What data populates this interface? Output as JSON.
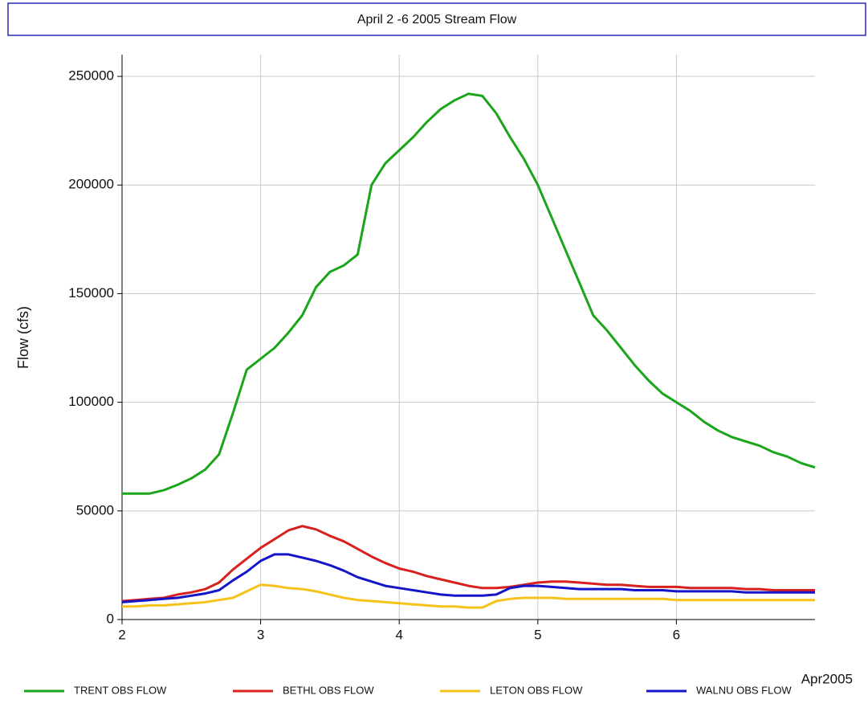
{
  "chart_data": {
    "type": "line",
    "title": "April 2 -6 2005 Stream Flow",
    "ylabel": "Flow (cfs)",
    "xlabel": "Apr2005",
    "x": [
      2,
      2.1,
      2.2,
      2.3,
      2.4,
      2.5,
      2.6,
      2.7,
      2.8,
      2.9,
      3,
      3.1,
      3.2,
      3.3,
      3.4,
      3.5,
      3.6,
      3.7,
      3.8,
      3.9,
      4,
      4.1,
      4.2,
      4.3,
      4.4,
      4.5,
      4.6,
      4.7,
      4.8,
      4.9,
      5,
      5.1,
      5.2,
      5.3,
      5.4,
      5.5,
      5.6,
      5.7,
      5.8,
      5.9,
      6,
      6.1,
      6.2,
      6.3,
      6.4,
      6.5,
      6.6,
      6.7,
      6.8,
      6.9,
      7
    ],
    "xlim": [
      2,
      7
    ],
    "xticks": [
      2,
      3,
      4,
      5,
      6
    ],
    "ylim": [
      0,
      260000
    ],
    "yticks": [
      0,
      50000,
      100000,
      150000,
      200000,
      250000
    ],
    "grid": true,
    "legend": "bottom",
    "series": [
      {
        "name": "TRENT OBS FLOW",
        "color": "#1aa51a",
        "values": [
          58000,
          58000,
          58000,
          59500,
          62000,
          65000,
          69000,
          76000,
          95000,
          115000,
          120000,
          125000,
          132000,
          140000,
          153000,
          160000,
          163000,
          168000,
          200000,
          210000,
          216000,
          222000,
          229000,
          235000,
          239000,
          242000,
          241000,
          233000,
          222000,
          212000,
          200000,
          185000,
          170000,
          155000,
          140000,
          133000,
          125000,
          117000,
          110000,
          104000,
          100000,
          96000,
          91000,
          87000,
          84000,
          82000,
          80000,
          77000,
          75000,
          72000,
          70000
        ]
      },
      {
        "name": "BETHL OBS FLOW",
        "color": "#d8201e",
        "values": [
          8500,
          9000,
          9500,
          10000,
          11500,
          12500,
          14000,
          17000,
          23000,
          28000,
          33000,
          37000,
          41000,
          43000,
          41500,
          38500,
          36000,
          32500,
          29000,
          26000,
          23500,
          22000,
          20000,
          18500,
          17000,
          15500,
          14500,
          14500,
          15000,
          16000,
          17000,
          17500,
          17500,
          17000,
          16500,
          16000,
          16000,
          15500,
          15000,
          15000,
          15000,
          14500,
          14500,
          14500,
          14500,
          14000,
          14000,
          13500,
          13500,
          13500,
          13500
        ]
      },
      {
        "name": "LETON OBS FLOW",
        "color": "#f5c21b",
        "values": [
          6000,
          6000,
          6500,
          6500,
          7000,
          7500,
          8000,
          9000,
          10000,
          13000,
          16000,
          15500,
          14500,
          14000,
          13000,
          11500,
          10000,
          9000,
          8500,
          8000,
          7500,
          7000,
          6500,
          6000,
          6000,
          5500,
          5500,
          8500,
          9500,
          10000,
          10000,
          10000,
          9500,
          9500,
          9500,
          9500,
          9500,
          9500,
          9500,
          9500,
          9000,
          9000,
          9000,
          9000,
          9000,
          9000,
          9000,
          9000,
          9000,
          9000,
          9000
        ]
      },
      {
        "name": "WALNU OBS FLOW",
        "color": "#1414c8",
        "values": [
          8000,
          8500,
          9000,
          9500,
          10000,
          11000,
          12000,
          13500,
          18000,
          22000,
          27000,
          30000,
          30000,
          28500,
          27000,
          25000,
          22500,
          19500,
          17500,
          15500,
          14500,
          13500,
          12500,
          11500,
          11000,
          11000,
          11000,
          11500,
          14500,
          15500,
          15500,
          15000,
          14500,
          14000,
          14000,
          14000,
          14000,
          13500,
          13500,
          13500,
          13000,
          13000,
          13000,
          13000,
          13000,
          12500,
          12500,
          12500,
          12500,
          12500,
          12500
        ]
      }
    ]
  }
}
